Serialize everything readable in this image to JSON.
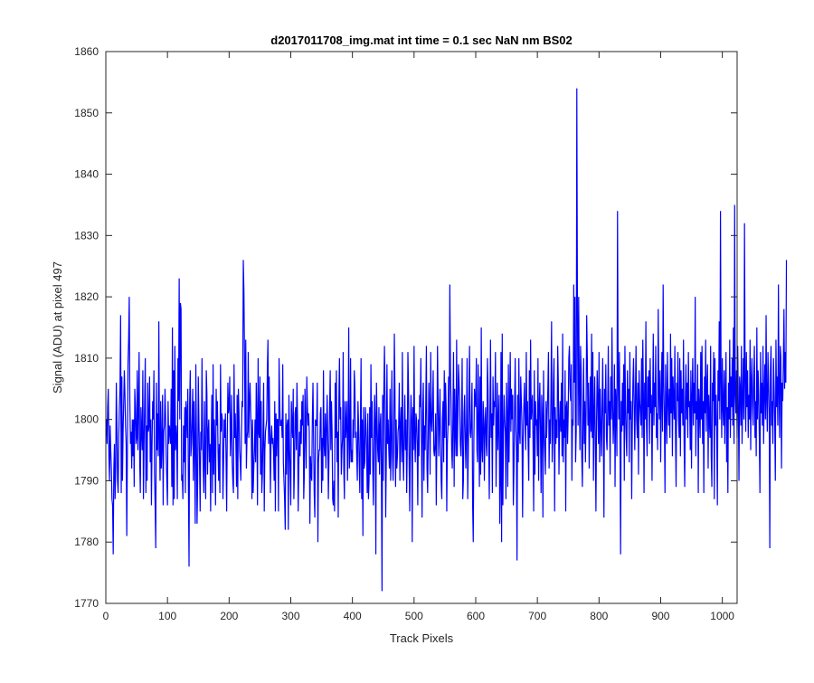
{
  "chart_data": {
    "type": "line",
    "title": "d2017011708_img.mat int time = 0.1 sec  NaN nm BS02",
    "xlabel": "Track Pixels",
    "ylabel": "Signal (ADU) at pixel 497",
    "xlim": [
      0,
      1024
    ],
    "ylim": [
      1770,
      1860
    ],
    "xticks": [
      0,
      100,
      200,
      300,
      400,
      500,
      600,
      700,
      800,
      900,
      1000
    ],
    "yticks": [
      1770,
      1780,
      1790,
      1800,
      1810,
      1820,
      1830,
      1840,
      1850,
      1860
    ],
    "grid": false,
    "line_color": "#0000ff",
    "series": [
      {
        "x_start": 1,
        "x_step": 1,
        "values": [
          1800,
          1796,
          1802,
          1805,
          1794,
          1790,
          1799,
          1795,
          1792,
          1787,
          1786,
          1778,
          1792,
          1796,
          1787,
          1792,
          1806,
          1799,
          1790,
          1788,
          1797,
          1802,
          1805,
          1817,
          1788,
          1807,
          1790,
          1798,
          1803,
          1808,
          1804,
          1799,
          1796,
          1781,
          1795,
          1809,
          1813,
          1820,
          1803,
          1796,
          1798,
          1792,
          1800,
          1794,
          1800,
          1789,
          1805,
          1802,
          1796,
          1797,
          1808,
          1795,
          1802,
          1811,
          1793,
          1788,
          1802,
          1798,
          1795,
          1808,
          1787,
          1796,
          1803,
          1810,
          1788,
          1799,
          1790,
          1806,
          1798,
          1799,
          1807,
          1793,
          1800,
          1786,
          1796,
          1803,
          1800,
          1808,
          1791,
          1786,
          1779,
          1806,
          1795,
          1801,
          1794,
          1816,
          1797,
          1790,
          1803,
          1792,
          1796,
          1804,
          1786,
          1798,
          1799,
          1805,
          1800,
          1794,
          1790,
          1786,
          1803,
          1796,
          1799,
          1798,
          1796,
          1805,
          1789,
          1815,
          1786,
          1808,
          1787,
          1812,
          1795,
          1799,
          1797,
          1787,
          1810,
          1803,
          1823,
          1800,
          1819,
          1818,
          1790,
          1791,
          1787,
          1799,
          1793,
          1802,
          1788,
          1803,
          1801,
          1797,
          1805,
          1789,
          1776,
          1803,
          1808,
          1794,
          1796,
          1800,
          1805,
          1790,
          1803,
          1796,
          1783,
          1809,
          1797,
          1783,
          1790,
          1807,
          1800,
          1793,
          1785,
          1798,
          1795,
          1810,
          1798,
          1792,
          1788,
          1803,
          1793,
          1787,
          1808,
          1804,
          1791,
          1798,
          1800,
          1793,
          1796,
          1785,
          1797,
          1804,
          1788,
          1809,
          1791,
          1800,
          1795,
          1786,
          1805,
          1799,
          1803,
          1795,
          1790,
          1796,
          1788,
          1809,
          1798,
          1801,
          1800,
          1787,
          1793,
          1800,
          1797,
          1801,
          1794,
          1785,
          1797,
          1806,
          1801,
          1802,
          1807,
          1794,
          1798,
          1804,
          1793,
          1790,
          1788,
          1809,
          1797,
          1801,
          1796,
          1789,
          1804,
          1787,
          1805,
          1801,
          1795,
          1793,
          1790,
          1798,
          1803,
          1802,
          1826,
          1821,
          1810,
          1796,
          1813,
          1792,
          1797,
          1798,
          1811,
          1797,
          1803,
          1806,
          1801,
          1798,
          1787,
          1800,
          1788,
          1792,
          1795,
          1800,
          1793,
          1806,
          1800,
          1786,
          1810,
          1798,
          1797,
          1807,
          1791,
          1803,
          1788,
          1791,
          1798,
          1806,
          1785,
          1795,
          1798,
          1799,
          1800,
          1808,
          1813,
          1796,
          1807,
          1798,
          1788,
          1797,
          1799,
          1796,
          1797,
          1795,
          1790,
          1803,
          1785,
          1801,
          1794,
          1800,
          1800,
          1785,
          1810,
          1803,
          1799,
          1799,
          1800,
          1797,
          1809,
          1793,
          1790,
          1787,
          1782,
          1801,
          1791,
          1799,
          1800,
          1782,
          1804,
          1796,
          1791,
          1786,
          1803,
          1799,
          1797,
          1805,
          1787,
          1792,
          1801,
          1802,
          1795,
          1806,
          1800,
          1785,
          1792,
          1798,
          1794,
          1800,
          1796,
          1803,
          1799,
          1804,
          1787,
          1791,
          1805,
          1798,
          1792,
          1807,
          1802,
          1799,
          1801,
          1798,
          1783,
          1794,
          1791,
          1790,
          1800,
          1806,
          1797,
          1788,
          1784,
          1800,
          1799,
          1799,
          1806,
          1780,
          1793,
          1795,
          1795,
          1801,
          1802,
          1788,
          1797,
          1790,
          1808,
          1796,
          1794,
          1801,
          1792,
          1798,
          1804,
          1797,
          1787,
          1794,
          1802,
          1808,
          1795,
          1803,
          1798,
          1787,
          1786,
          1790,
          1785,
          1806,
          1797,
          1808,
          1793,
          1798,
          1784,
          1803,
          1810,
          1800,
          1802,
          1791,
          1795,
          1797,
          1811,
          1792,
          1787,
          1803,
          1797,
          1799,
          1803,
          1790,
          1797,
          1815,
          1792,
          1795,
          1810,
          1793,
          1795,
          1793,
          1800,
          1797,
          1808,
          1805,
          1797,
          1798,
          1794,
          1790,
          1803,
          1799,
          1793,
          1788,
          1800,
          1810,
          1787,
          1800,
          1781,
          1802,
          1792,
          1793,
          1802,
          1799,
          1795,
          1788,
          1801,
          1787,
          1790,
          1802,
          1791,
          1809,
          1797,
          1803,
          1792,
          1786,
          1796,
          1804,
          1800,
          1778,
          1806,
          1800,
          1795,
          1793,
          1802,
          1791,
          1799,
          1801,
          1791,
          1772,
          1804,
          1790,
          1805,
          1812,
          1803,
          1784,
          1794,
          1809,
          1796,
          1800,
          1795,
          1792,
          1805,
          1790,
          1797,
          1808,
          1794,
          1790,
          1797,
          1814,
          1805,
          1789,
          1800,
          1792,
          1794,
          1798,
          1799,
          1806,
          1790,
          1799,
          1802,
          1793,
          1811,
          1795,
          1790,
          1798,
          1804,
          1795,
          1800,
          1788,
          1796,
          1811,
          1805,
          1792,
          1785,
          1798,
          1804,
          1800,
          1780,
          1802,
          1795,
          1812,
          1797,
          1793,
          1801,
          1800,
          1796,
          1786,
          1800,
          1794,
          1804,
          1802,
          1810,
          1796,
          1784,
          1801,
          1806,
          1790,
          1799,
          1795,
          1803,
          1812,
          1792,
          1788,
          1797,
          1806,
          1801,
          1791,
          1811,
          1800,
          1798,
          1802,
          1808,
          1795,
          1794,
          1796,
          1801,
          1786,
          1797,
          1812,
          1803,
          1794,
          1799,
          1805,
          1796,
          1790,
          1787,
          1800,
          1803,
          1793,
          1808,
          1797,
          1806,
          1802,
          1785,
          1796,
          1799,
          1807,
          1799,
          1822,
          1808,
          1803,
          1795,
          1792,
          1800,
          1811,
          1789,
          1805,
          1798,
          1794,
          1813,
          1794,
          1800,
          1809,
          1806,
          1803,
          1796,
          1794,
          1799,
          1810,
          1787,
          1790,
          1801,
          1804,
          1797,
          1792,
          1799,
          1810,
          1787,
          1795,
          1804,
          1812,
          1798,
          1797,
          1800,
          1806,
          1786,
          1780,
          1797,
          1805,
          1803,
          1802,
          1810,
          1795,
          1793,
          1809,
          1800,
          1789,
          1807,
          1791,
          1815,
          1795,
          1793,
          1803,
          1800,
          1790,
          1799,
          1802,
          1796,
          1794,
          1810,
          1805,
          1796,
          1787,
          1800,
          1813,
          1797,
          1801,
          1788,
          1807,
          1799,
          1803,
          1802,
          1811,
          1789,
          1798,
          1806,
          1795,
          1800,
          1804,
          1783,
          1790,
          1811,
          1780,
          1814,
          1786,
          1797,
          1804,
          1800,
          1798,
          1787,
          1806,
          1800,
          1789,
          1809,
          1793,
          1802,
          1811,
          1798,
          1805,
          1800,
          1804,
          1786,
          1792,
          1802,
          1810,
          1799,
          1795,
          1777,
          1804,
          1793,
          1810,
          1798,
          1796,
          1807,
          1803,
          1799,
          1784,
          1797,
          1802,
          1806,
          1800,
          1795,
          1811,
          1799,
          1803,
          1796,
          1790,
          1808,
          1797,
          1813,
          1800,
          1802,
          1804,
          1796,
          1785,
          1808,
          1791,
          1803,
          1799,
          1800,
          1794,
          1810,
          1790,
          1802,
          1806,
          1798,
          1788,
          1804,
          1800,
          1784,
          1808,
          1798,
          1795,
          1791,
          1803,
          1797,
          1801,
          1805,
          1811,
          1792,
          1800,
          1796,
          1804,
          1816,
          1793,
          1797,
          1806,
          1810,
          1785,
          1802,
          1796,
          1800,
          1797,
          1812,
          1806,
          1791,
          1799,
          1803,
          1798,
          1806,
          1794,
          1814,
          1793,
          1800,
          1797,
          1808,
          1785,
          1802,
          1803,
          1796,
          1801,
          1810,
          1812,
          1805,
          1803,
          1809,
          1790,
          1800,
          1799,
          1822,
          1806,
          1820,
          1793,
          1798,
          1854,
          1818,
          1799,
          1820,
          1805,
          1795,
          1812,
          1808,
          1794,
          1789,
          1800,
          1810,
          1796,
          1803,
          1793,
          1801,
          1817,
          1810,
          1799,
          1806,
          1792,
          1800,
          1807,
          1798,
          1814,
          1797,
          1811,
          1790,
          1801,
          1807,
          1796,
          1785,
          1800,
          1808,
          1803,
          1796,
          1811,
          1793,
          1805,
          1799,
          1794,
          1802,
          1810,
          1798,
          1784,
          1805,
          1801,
          1809,
          1797,
          1795,
          1802,
          1812,
          1799,
          1803,
          1791,
          1807,
          1800,
          1815,
          1803,
          1796,
          1800,
          1809,
          1789,
          1805,
          1802,
          1794,
          1834,
          1807,
          1800,
          1811,
          1797,
          1778,
          1803,
          1798,
          1806,
          1799,
          1809,
          1790,
          1812,
          1802,
          1797,
          1794,
          1808,
          1801,
          1805,
          1793,
          1811,
          1800,
          1803,
          1787,
          1799,
          1806,
          1810,
          1802,
          1795,
          1804,
          1812,
          1800,
          1797,
          1806,
          1791,
          1808,
          1803,
          1801,
          1799,
          1810,
          1797,
          1813,
          1804,
          1788,
          1806,
          1800,
          1816,
          1799,
          1794,
          1807,
          1802,
          1808,
          1796,
          1810,
          1801,
          1804,
          1790,
          1803,
          1814,
          1799,
          1806,
          1802,
          1812,
          1797,
          1801,
          1795,
          1818,
          1805,
          1800,
          1808,
          1793,
          1803,
          1811,
          1798,
          1822,
          1806,
          1800,
          1788,
          1809,
          1802,
          1796,
          1811,
          1803,
          1799,
          1805,
          1797,
          1814,
          1801,
          1810,
          1794,
          1807,
          1803,
          1800,
          1812,
          1798,
          1789,
          1806,
          1803,
          1811,
          1800,
          1797,
          1810,
          1794,
          1808,
          1801,
          1805,
          1799,
          1813,
          1796,
          1789,
          1803,
          1809,
          1800,
          1806,
          1797,
          1811,
          1802,
          1803,
          1795,
          1808,
          1792,
          1804,
          1810,
          1799,
          1806,
          1801,
          1820,
          1794,
          1803,
          1800,
          1809,
          1788,
          1805,
          1802,
          1797,
          1811,
          1800,
          1812,
          1796,
          1803,
          1788,
          1807,
          1801,
          1813,
          1798,
          1805,
          1809,
          1792,
          1804,
          1800,
          1797,
          1812,
          1794,
          1789,
          1806,
          1803,
          1811,
          1787,
          1810,
          1799,
          1804,
          1797,
          1786,
          1808,
          1803,
          1816,
          1800,
          1834,
          1806,
          1797,
          1810,
          1802,
          1799,
          1808,
          1796,
          1804,
          1811,
          1793,
          1802,
          1788,
          1806,
          1800,
          1813,
          1797,
          1807,
          1802,
          1810,
          1799,
          1815,
          1796,
          1835,
          1804,
          1801,
          1808,
          1797,
          1812,
          1802,
          1790,
          1807,
          1805,
          1799,
          1812,
          1796,
          1803,
          1810,
          1800,
          1832,
          1806,
          1798,
          1811,
          1802,
          1808,
          1797,
          1804,
          1800,
          1813,
          1795,
          1806,
          1810,
          1802,
          1799,
          1807,
          1812,
          1797,
          1803,
          1794,
          1815,
          1800,
          1808,
          1804,
          1797,
          1788,
          1811,
          1801,
          1806,
          1799,
          1812,
          1796,
          1804,
          1809,
          1800,
          1817,
          1803,
          1798,
          1811,
          1806,
          1801,
          1779,
          1808,
          1812,
          1799,
          1803,
          1796,
          1810,
          1805,
          1800,
          1790,
          1813,
          1802,
          1807,
          1799,
          1822,
          1804,
          1797,
          1812,
          1810,
          1792,
          1806,
          1803,
          1809,
          1818,
          1805,
          1811,
          1806,
          1826
        ]
      }
    ]
  }
}
